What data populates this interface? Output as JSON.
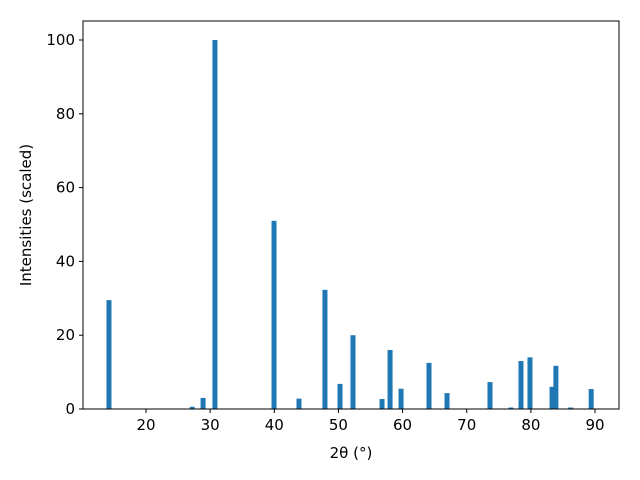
{
  "chart_data": {
    "type": "bar",
    "xlabel": "2θ (°)",
    "ylabel": "Intensities (scaled)",
    "x": [
      14.23,
      27.2,
      28.9,
      30.75,
      39.96,
      43.85,
      47.9,
      50.25,
      52.27,
      56.8,
      58.05,
      59.76,
      64.12,
      66.93,
      73.63,
      76.9,
      78.46,
      79.86,
      83.3,
      83.9,
      86.2,
      89.4
    ],
    "values": [
      29.5,
      0.6,
      3,
      100,
      51,
      2.8,
      32.3,
      6.8,
      20,
      2.7,
      16,
      5.5,
      12.5,
      4.3,
      7.3,
      0.4,
      13,
      14,
      6,
      11.7,
      0.4,
      5.4
    ],
    "color": "#1f77b4",
    "xlim": [
      10.18,
      93.74
    ],
    "xticks": [
      20,
      30,
      40,
      50,
      60,
      70,
      80,
      90
    ],
    "ylim": [
      0,
      105.15
    ],
    "yticks": [
      0,
      20,
      40,
      60,
      80,
      100
    ],
    "grid": false
  }
}
